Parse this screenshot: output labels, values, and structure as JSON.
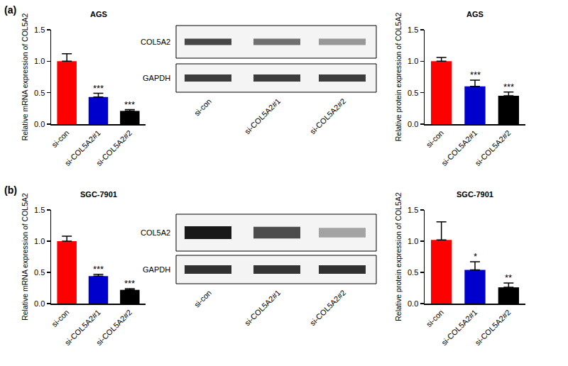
{
  "chart_data": [
    {
      "type": "bar",
      "panel": "(a)",
      "title": "AGS",
      "y_label": "Relative mRNA expression of COL5A2",
      "categories": [
        "si-con",
        "si-COL5A2#1",
        "si-COL5A2#2"
      ],
      "values": [
        1.0,
        0.43,
        0.21
      ],
      "errors": [
        0.12,
        0.06,
        0.02
      ],
      "significance": [
        null,
        "***",
        "***"
      ],
      "colors": [
        "#ff0000",
        "#0000cc",
        "#000000"
      ],
      "ylim": [
        0,
        1.5
      ],
      "yticks": [
        {
          "value": 0,
          "label": "0.0"
        },
        {
          "value": 0.5,
          "label": "0.5"
        },
        {
          "value": 1,
          "label": "1.0"
        },
        {
          "value": 1.5,
          "label": "1.5"
        }
      ],
      "grid": false
    },
    {
      "type": "bar",
      "panel": "(a)",
      "title": "AGS",
      "y_label": "Relative protein expression of COL5A2",
      "categories": [
        "si-con",
        "si-COL5A2#1",
        "si-COL5A2#2"
      ],
      "values": [
        1.0,
        0.6,
        0.45
      ],
      "errors": [
        0.06,
        0.1,
        0.06
      ],
      "significance": [
        null,
        "***",
        "***"
      ],
      "colors": [
        "#ff0000",
        "#0000cc",
        "#000000"
      ],
      "ylim": [
        0,
        1.5
      ],
      "yticks": [
        {
          "value": 0,
          "label": "0.0"
        },
        {
          "value": 0.5,
          "label": "0.5"
        },
        {
          "value": 1,
          "label": "1.0"
        },
        {
          "value": 1.5,
          "label": "1.5"
        }
      ],
      "grid": false
    },
    {
      "type": "bar",
      "panel": "(b)",
      "title": "SGC-7901",
      "y_label": "Relative mRNA expression of COL5A2",
      "categories": [
        "si-con",
        "si-COL5A2#1",
        "si-COL5A2#2"
      ],
      "values": [
        1.0,
        0.44,
        0.22
      ],
      "errors": [
        0.08,
        0.03,
        0.02
      ],
      "significance": [
        null,
        "***",
        "***"
      ],
      "colors": [
        "#ff0000",
        "#0000cc",
        "#000000"
      ],
      "ylim": [
        0,
        1.5
      ],
      "yticks": [
        {
          "value": 0,
          "label": "0.0"
        },
        {
          "value": 0.5,
          "label": "0.5"
        },
        {
          "value": 1,
          "label": "1.0"
        },
        {
          "value": 1.5,
          "label": "1.5"
        }
      ],
      "grid": false
    },
    {
      "type": "bar",
      "panel": "(b)",
      "title": "SGC-7901",
      "y_label": "Relative protein expression of COL5A2",
      "categories": [
        "si-con",
        "si-COL5A2#1",
        "si-COL5A2#2"
      ],
      "values": [
        1.02,
        0.54,
        0.26
      ],
      "errors": [
        0.29,
        0.13,
        0.07
      ],
      "significance": [
        null,
        "*",
        "**"
      ],
      "colors": [
        "#ff0000",
        "#0000cc",
        "#000000"
      ],
      "ylim": [
        0,
        1.5
      ],
      "yticks": [
        {
          "value": 0,
          "label": "0.0"
        },
        {
          "value": 0.5,
          "label": "0.5"
        },
        {
          "value": 1,
          "label": "1.0"
        },
        {
          "value": 1.5,
          "label": "1.5"
        }
      ],
      "grid": false
    }
  ],
  "blots": [
    {
      "panel": "(a)",
      "rows": [
        "COL5A2",
        "GAPDH"
      ],
      "lanes": [
        "si-con",
        "si-COL5A2#1",
        "si-COL5A2#2"
      ]
    },
    {
      "panel": "(b)",
      "rows": [
        "COL5A2",
        "GAPDH"
      ],
      "lanes": [
        "si-con",
        "si-COL5A2#1",
        "si-COL5A2#2"
      ]
    }
  ]
}
